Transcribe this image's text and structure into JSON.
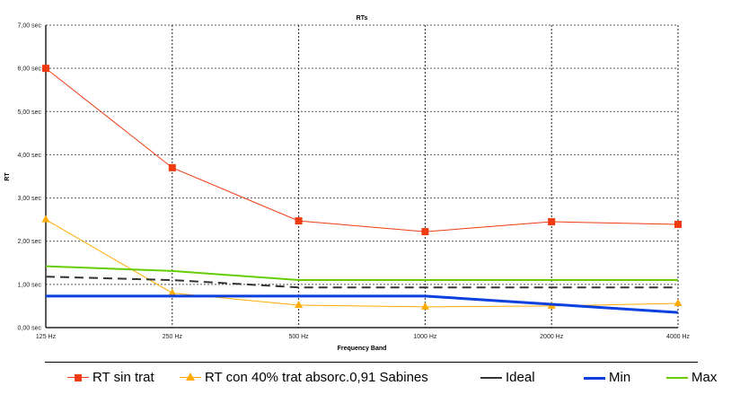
{
  "chart_data": {
    "type": "line",
    "title": "RTs",
    "xlabel": "Frequency Band",
    "ylabel": "RT",
    "categories": [
      "125 Hz",
      "250 Hz",
      "500 Hz",
      "1000 Hz",
      "2000 Hz",
      "4000 Hz"
    ],
    "yticks": [
      "0,00 sec",
      "1,00 sec",
      "2,00 sec",
      "3,00 sec",
      "4,00 sec",
      "5,00 sec",
      "6,00 sec",
      "7,00 sec"
    ],
    "ylim": [
      0,
      7
    ],
    "grid": true,
    "legend_position": "bottom",
    "series": [
      {
        "name": "RT sin trat",
        "color": "#f03a10",
        "marker": "square",
        "width": 1,
        "values": [
          6.0,
          3.7,
          2.47,
          2.22,
          2.45,
          2.39
        ]
      },
      {
        "name": "RT con 40% trat absorc.0,91 Sabines",
        "color": "#ffaa00",
        "marker": "triangle",
        "width": 1,
        "values": [
          2.5,
          0.8,
          0.52,
          0.48,
          0.5,
          0.56
        ]
      },
      {
        "name": "Ideal",
        "color": "#333333",
        "marker": "none",
        "width": 2,
        "dash": "10,6",
        "values": [
          1.18,
          1.1,
          0.93,
          0.93,
          0.93,
          0.93
        ]
      },
      {
        "name": "Min",
        "color": "#0a3fe0",
        "marker": "none",
        "width": 3,
        "values": [
          0.73,
          0.73,
          0.73,
          0.73,
          0.54,
          0.35
        ]
      },
      {
        "name": "Max",
        "color": "#66cc00",
        "marker": "none",
        "width": 2,
        "values": [
          1.42,
          1.31,
          1.1,
          1.1,
          1.1,
          1.1
        ]
      }
    ]
  }
}
